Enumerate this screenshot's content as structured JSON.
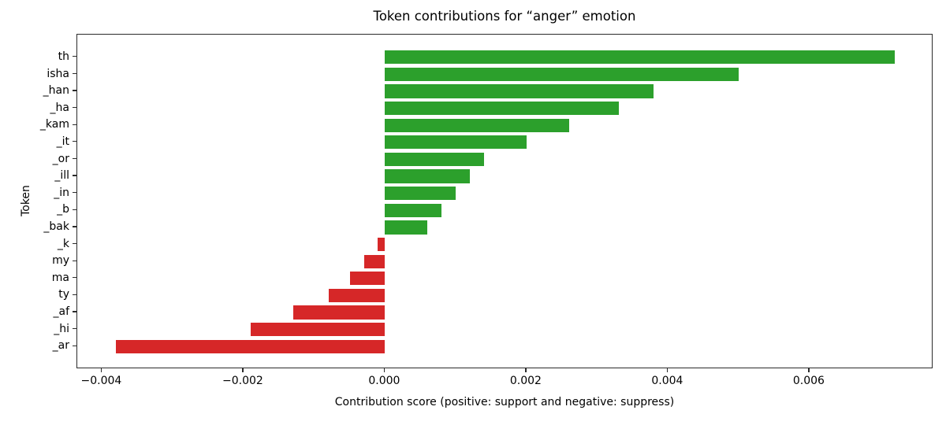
{
  "chart_data": {
    "type": "bar",
    "orientation": "horizontal",
    "title": "Token contributions for “anger” emotion",
    "xlabel": "Contribution score (positive: support and negative: suppress)",
    "ylabel": "Token",
    "categories": [
      "th",
      "isha",
      "_han",
      "_ha",
      "_kam",
      "_it",
      "_or",
      "_ill",
      "_in",
      "_b",
      "_bak",
      "_k",
      "my",
      "ma",
      "ty",
      "_af",
      "_hi",
      "_ar"
    ],
    "values": [
      0.0072,
      0.005,
      0.0038,
      0.0033,
      0.0026,
      0.002,
      0.0014,
      0.0012,
      0.001,
      0.0008,
      0.0006,
      -0.0001,
      -0.0003,
      -0.0005,
      -0.0008,
      -0.0013,
      -0.0019,
      -0.0038
    ],
    "xlim": [
      -0.00435,
      0.00775
    ],
    "xticks": [
      -0.004,
      -0.002,
      0.0,
      0.002,
      0.004,
      0.006
    ],
    "xtick_labels": [
      "−0.004",
      "−0.002",
      "0.000",
      "0.002",
      "0.004",
      "0.006"
    ],
    "positive_color": "#2ca02c",
    "negative_color": "#d62728",
    "axis_color": "#2b2b2b",
    "grid": false,
    "legend_position": "none",
    "bar_width_fraction": 0.8
  }
}
